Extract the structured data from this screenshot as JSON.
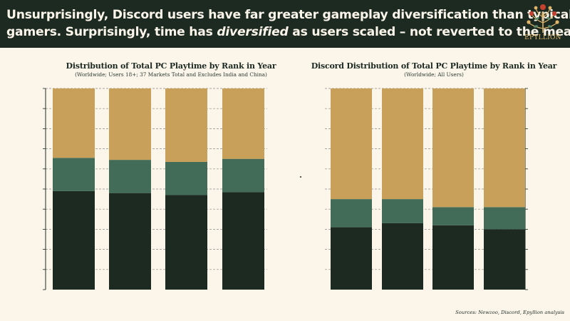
{
  "header": {
    "headline_line1": "Unsurprisingly, Discord users have far greater gameplay diversification than typical",
    "headline_line2_a": "gamers. Surprisingly, time has ",
    "headline_line2_em": "diversified",
    "headline_line2_b": " as users scaled – not reverted to the mean",
    "logo_text": "EPYLLION",
    "logo_icon": "floral-tree-icon"
  },
  "colors": {
    "background": "#fbf5ea",
    "header_bg": "#1c2a22",
    "rank_1": "#1c2a22",
    "rank_2": "#426b58",
    "other": "#c8a05a"
  },
  "chart_data": [
    {
      "type": "bar",
      "stacked": true,
      "title": "Distribution of Total PC Playtime by Rank in Year",
      "subtitle": "(Worldwide; Users 18+; 37 Markets Total and Excludes India and China)",
      "categories": [
        "",
        "",
        "",
        ""
      ],
      "series": [
        {
          "values": [
            49,
            48,
            47,
            48.5
          ]
        },
        {
          "values": [
            16.5,
            16.5,
            16.5,
            16.5
          ]
        },
        {
          "values": [
            34.5,
            35.5,
            36.5,
            35
          ]
        }
      ],
      "ylim": [
        0,
        100
      ],
      "grid": true
    },
    {
      "type": "bar",
      "stacked": true,
      "title": "Discord Distribution of Total PC Playtime by Rank in Year",
      "subtitle": "(Worldwide; All Users)",
      "categories": [
        "",
        "",
        "",
        ""
      ],
      "series": [
        {
          "values": [
            31,
            33,
            32,
            30
          ]
        },
        {
          "values": [
            14,
            12,
            9,
            11
          ]
        },
        {
          "values": [
            55,
            55,
            59,
            59
          ]
        }
      ],
      "ylim": [
        0,
        100
      ],
      "grid": true
    }
  ],
  "footer": {
    "sources": "Sources: Newzoo, Discord, Epyllion analysis"
  }
}
